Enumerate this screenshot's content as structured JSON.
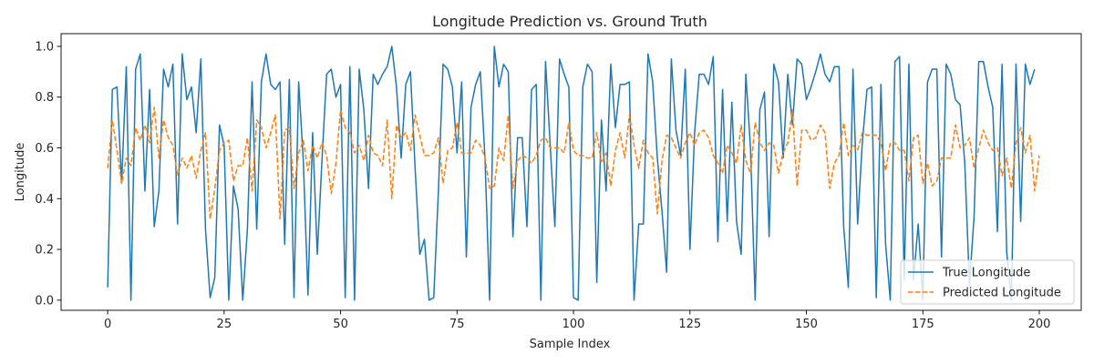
{
  "chart_data": {
    "type": "line",
    "title": "Longitude Prediction vs. Ground Truth",
    "xlabel": "Sample Index",
    "ylabel": "Longitude",
    "xlim": [
      -10,
      209
    ],
    "ylim": [
      -0.04,
      1.05
    ],
    "xticks": [
      0,
      25,
      50,
      75,
      100,
      125,
      150,
      175,
      200
    ],
    "yticks": [
      0.0,
      0.2,
      0.4,
      0.6,
      0.8,
      1.0
    ],
    "ytick_labels": [
      "0.0",
      "0.2",
      "0.4",
      "0.6",
      "0.8",
      "1.0"
    ],
    "legend_position": "lower-right",
    "grid": false,
    "series": [
      {
        "name": "True Longitude",
        "color": "#1f77b4",
        "style": "solid",
        "values": [
          0.05,
          0.83,
          0.84,
          0.46,
          0.92,
          0.0,
          0.91,
          0.97,
          0.43,
          0.83,
          0.29,
          0.43,
          0.91,
          0.84,
          0.93,
          0.3,
          0.97,
          0.79,
          0.84,
          0.66,
          0.95,
          0.28,
          0.01,
          0.09,
          0.69,
          0.61,
          0.0,
          0.45,
          0.36,
          0.0,
          0.28,
          0.86,
          0.28,
          0.86,
          0.97,
          0.85,
          0.83,
          0.86,
          0.22,
          0.87,
          0.01,
          0.86,
          0.55,
          0.02,
          0.66,
          0.18,
          0.55,
          0.89,
          0.91,
          0.8,
          0.85,
          0.01,
          0.92,
          0.0,
          0.91,
          0.75,
          0.44,
          0.89,
          0.85,
          0.89,
          0.92,
          1.0,
          0.84,
          0.56,
          0.85,
          0.9,
          0.52,
          0.18,
          0.24,
          0.0,
          0.01,
          0.43,
          0.93,
          0.91,
          0.84,
          0.58,
          0.86,
          0.17,
          0.76,
          0.85,
          0.9,
          0.56,
          0.0,
          1.0,
          0.84,
          0.93,
          0.9,
          0.25,
          0.64,
          0.64,
          0.29,
          0.83,
          0.85,
          0.0,
          0.94,
          0.61,
          0.29,
          0.95,
          0.89,
          0.84,
          0.01,
          0.0,
          0.84,
          0.93,
          0.9,
          0.07,
          0.71,
          0.43,
          0.93,
          0.68,
          0.85,
          0.85,
          0.86,
          0.0,
          0.3,
          0.3,
          0.97,
          0.86,
          0.56,
          0.35,
          0.11,
          0.95,
          0.67,
          0.57,
          0.91,
          0.2,
          0.66,
          0.89,
          0.89,
          0.85,
          0.96,
          0.23,
          0.83,
          0.31,
          0.78,
          0.31,
          0.18,
          0.89,
          0.6,
          0.0,
          0.75,
          0.82,
          0.25,
          0.93,
          0.86,
          0.56,
          0.89,
          0.69,
          0.95,
          0.93,
          0.79,
          0.84,
          0.9,
          0.97,
          0.89,
          0.86,
          0.92,
          0.92,
          0.29,
          0.05,
          0.91,
          0.3,
          0.62,
          0.83,
          0.84,
          0.01,
          0.85,
          0.22,
          0.0,
          0.94,
          0.96,
          0.08,
          0.93,
          0.08,
          0.3,
          0.0,
          0.86,
          0.91,
          0.91,
          0.17,
          0.93,
          0.89,
          0.79,
          0.77,
          0.54,
          0.06,
          0.33,
          0.94,
          0.94,
          0.84,
          0.76,
          0.27,
          0.93,
          0.19,
          0.0,
          0.93,
          0.31,
          0.93,
          0.85,
          0.91
        ]
      },
      {
        "name": "Predicted Longitude",
        "color": "#ff7f0e",
        "style": "dashed",
        "values": [
          0.52,
          0.71,
          0.59,
          0.46,
          0.56,
          0.53,
          0.68,
          0.63,
          0.69,
          0.62,
          0.76,
          0.56,
          0.71,
          0.64,
          0.61,
          0.49,
          0.56,
          0.52,
          0.57,
          0.48,
          0.59,
          0.66,
          0.32,
          0.44,
          0.59,
          0.62,
          0.63,
          0.47,
          0.53,
          0.53,
          0.64,
          0.43,
          0.71,
          0.68,
          0.6,
          0.66,
          0.73,
          0.32,
          0.67,
          0.68,
          0.44,
          0.58,
          0.63,
          0.51,
          0.61,
          0.56,
          0.62,
          0.57,
          0.42,
          0.54,
          0.75,
          0.68,
          0.66,
          0.58,
          0.61,
          0.55,
          0.65,
          0.58,
          0.57,
          0.53,
          0.71,
          0.4,
          0.69,
          0.64,
          0.66,
          0.59,
          0.73,
          0.65,
          0.57,
          0.57,
          0.58,
          0.64,
          0.46,
          0.59,
          0.6,
          0.7,
          0.58,
          0.58,
          0.58,
          0.63,
          0.61,
          0.56,
          0.44,
          0.45,
          0.6,
          0.55,
          0.73,
          0.44,
          0.55,
          0.57,
          0.56,
          0.54,
          0.57,
          0.63,
          0.64,
          0.6,
          0.6,
          0.6,
          0.58,
          0.7,
          0.59,
          0.57,
          0.57,
          0.56,
          0.56,
          0.66,
          0.54,
          0.58,
          0.45,
          0.59,
          0.66,
          0.56,
          0.73,
          0.61,
          0.52,
          0.63,
          0.58,
          0.56,
          0.34,
          0.55,
          0.65,
          0.64,
          0.6,
          0.56,
          0.62,
          0.66,
          0.61,
          0.66,
          0.67,
          0.64,
          0.57,
          0.54,
          0.5,
          0.61,
          0.58,
          0.54,
          0.69,
          0.55,
          0.5,
          0.7,
          0.62,
          0.59,
          0.62,
          0.61,
          0.5,
          0.58,
          0.62,
          0.75,
          0.45,
          0.67,
          0.67,
          0.63,
          0.64,
          0.69,
          0.66,
          0.44,
          0.54,
          0.57,
          0.7,
          0.57,
          0.61,
          0.59,
          0.66,
          0.65,
          0.65,
          0.65,
          0.62,
          0.51,
          0.62,
          0.62,
          0.59,
          0.59,
          0.47,
          0.64,
          0.65,
          0.46,
          0.54,
          0.45,
          0.47,
          0.56,
          0.56,
          0.56,
          0.69,
          0.6,
          0.61,
          0.64,
          0.52,
          0.6,
          0.67,
          0.62,
          0.59,
          0.6,
          0.49,
          0.56,
          0.44,
          0.62,
          0.68,
          0.58,
          0.65,
          0.43,
          0.57
        ]
      }
    ]
  }
}
